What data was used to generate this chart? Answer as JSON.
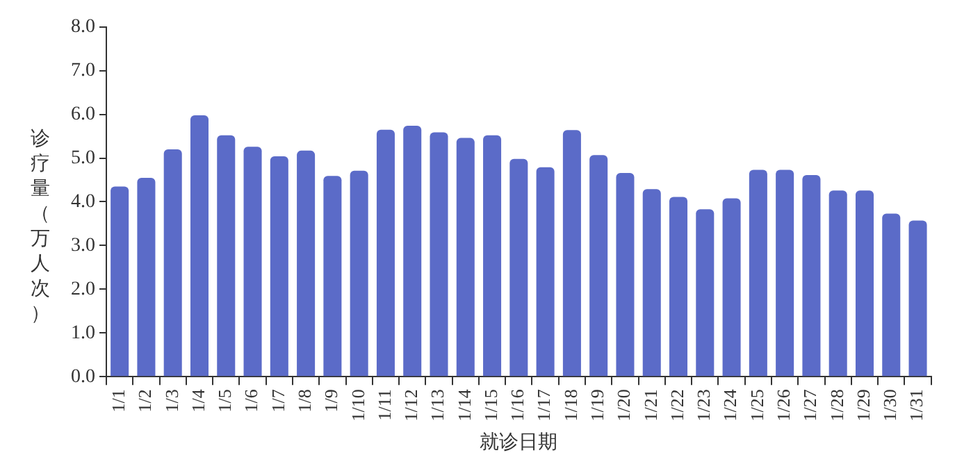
{
  "chart_data": {
    "type": "bar",
    "xlabel": "就诊日期",
    "ylabel": "诊疗量（万人次）",
    "categories": [
      "1/1",
      "1/2",
      "1/3",
      "1/4",
      "1/5",
      "1/6",
      "1/7",
      "1/8",
      "1/9",
      "1/10",
      "1/11",
      "1/12",
      "1/13",
      "1/14",
      "1/15",
      "1/16",
      "1/17",
      "1/18",
      "1/19",
      "1/20",
      "1/21",
      "1/22",
      "1/23",
      "1/24",
      "1/25",
      "1/26",
      "1/27",
      "1/28",
      "1/29",
      "1/30",
      "1/31"
    ],
    "values": [
      4.35,
      4.55,
      5.2,
      5.98,
      5.52,
      5.26,
      5.04,
      5.17,
      4.59,
      4.71,
      5.65,
      5.74,
      5.59,
      5.46,
      5.52,
      4.98,
      4.79,
      5.64,
      5.07,
      4.66,
      4.29,
      4.11,
      3.83,
      4.08,
      4.73,
      4.73,
      4.61,
      4.26,
      4.26,
      3.73,
      3.57
    ],
    "color": "#5b6bc8",
    "ylim": [
      0,
      8
    ],
    "yticks": [
      {
        "value": 0,
        "label": "0.0"
      },
      {
        "value": 1,
        "label": "1.0"
      },
      {
        "value": 2,
        "label": "2.0"
      },
      {
        "value": 3,
        "label": "3.0"
      },
      {
        "value": 4,
        "label": "4.0"
      },
      {
        "value": 5,
        "label": "5.0"
      },
      {
        "value": 6,
        "label": "6.0"
      },
      {
        "value": 7,
        "label": "7.0"
      },
      {
        "value": 8,
        "label": "8.0"
      }
    ],
    "grid": false,
    "legend": false
  }
}
